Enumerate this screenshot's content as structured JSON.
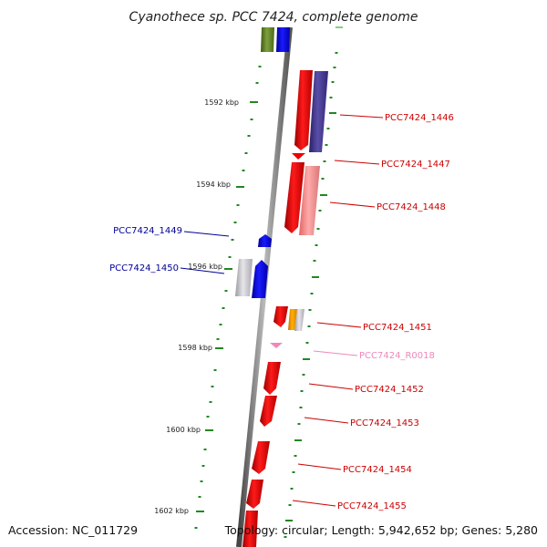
{
  "title": "Cyanothece sp. PCC 7424, complete genome",
  "accession_text": "Accession: NC_011729",
  "topology_text": "Topology: circular; Length: 5,942,652 bp; Genes: 5,280",
  "kbp_labels": [
    "1592 kbp",
    "1594 kbp",
    "1596 kbp",
    "1598 kbp",
    "1600 kbp",
    "1602 kbp"
  ],
  "gene_labels": [
    {
      "id": "PCC7424_1446",
      "strand": "reverse",
      "color": "#cc0000"
    },
    {
      "id": "PCC7424_1447",
      "strand": "reverse",
      "color": "#cc0000"
    },
    {
      "id": "PCC7424_1448",
      "strand": "reverse",
      "color": "#cc0000"
    },
    {
      "id": "PCC7424_1449",
      "strand": "forward",
      "color": "#000099"
    },
    {
      "id": "PCC7424_1450",
      "strand": "forward",
      "color": "#000099"
    },
    {
      "id": "PCC7424_1451",
      "strand": "reverse",
      "color": "#cc0000"
    },
    {
      "id": "PCC7424_R0018",
      "strand": "reverse",
      "color": "#ee88bb"
    },
    {
      "id": "PCC7424_1452",
      "strand": "reverse",
      "color": "#cc0000"
    },
    {
      "id": "PCC7424_1453",
      "strand": "reverse",
      "color": "#cc0000"
    },
    {
      "id": "PCC7424_1454",
      "strand": "reverse",
      "color": "#cc0000"
    },
    {
      "id": "PCC7424_1455",
      "strand": "reverse",
      "color": "#cc0000"
    }
  ],
  "colors": {
    "reverse_cds": "#ee0000",
    "forward_cds": "#0000ee",
    "rrna_trna": "#ee88bb",
    "backbone": "#777777",
    "tick": "#228822"
  }
}
